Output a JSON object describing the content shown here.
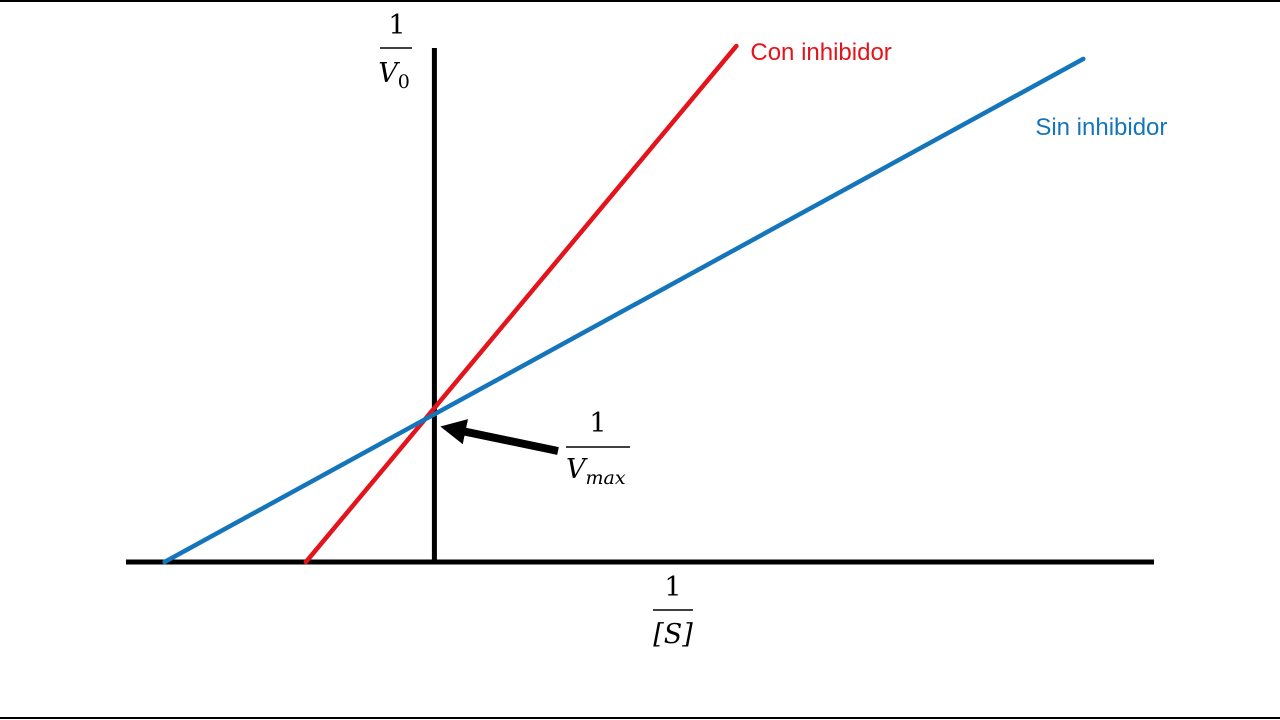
{
  "chart_data": {
    "type": "line",
    "title": "",
    "xlabel": {
      "numerator": "1",
      "denominator": "[S]"
    },
    "ylabel": {
      "numerator": "1",
      "denominator": "V",
      "subscript": "0"
    },
    "xlim": [
      -2.4,
      5.6
    ],
    "ylim": [
      0,
      4
    ],
    "grid": false,
    "legend": "inline-end-of-line",
    "series": [
      {
        "name": "Con inhibidor",
        "color": "#e3141b",
        "x": [
          -1.0,
          2.35
        ],
        "y": [
          0.0,
          4.0
        ]
      },
      {
        "name": "Sin inhibidor",
        "color": "#1575bb",
        "x": [
          -2.1,
          5.05
        ],
        "y": [
          0.0,
          3.9
        ]
      }
    ],
    "annotations": [
      {
        "id": "vmax",
        "point": [
          0,
          1.15
        ],
        "label": {
          "numerator": "1",
          "denominator": "V",
          "subscript": "max"
        }
      }
    ]
  }
}
